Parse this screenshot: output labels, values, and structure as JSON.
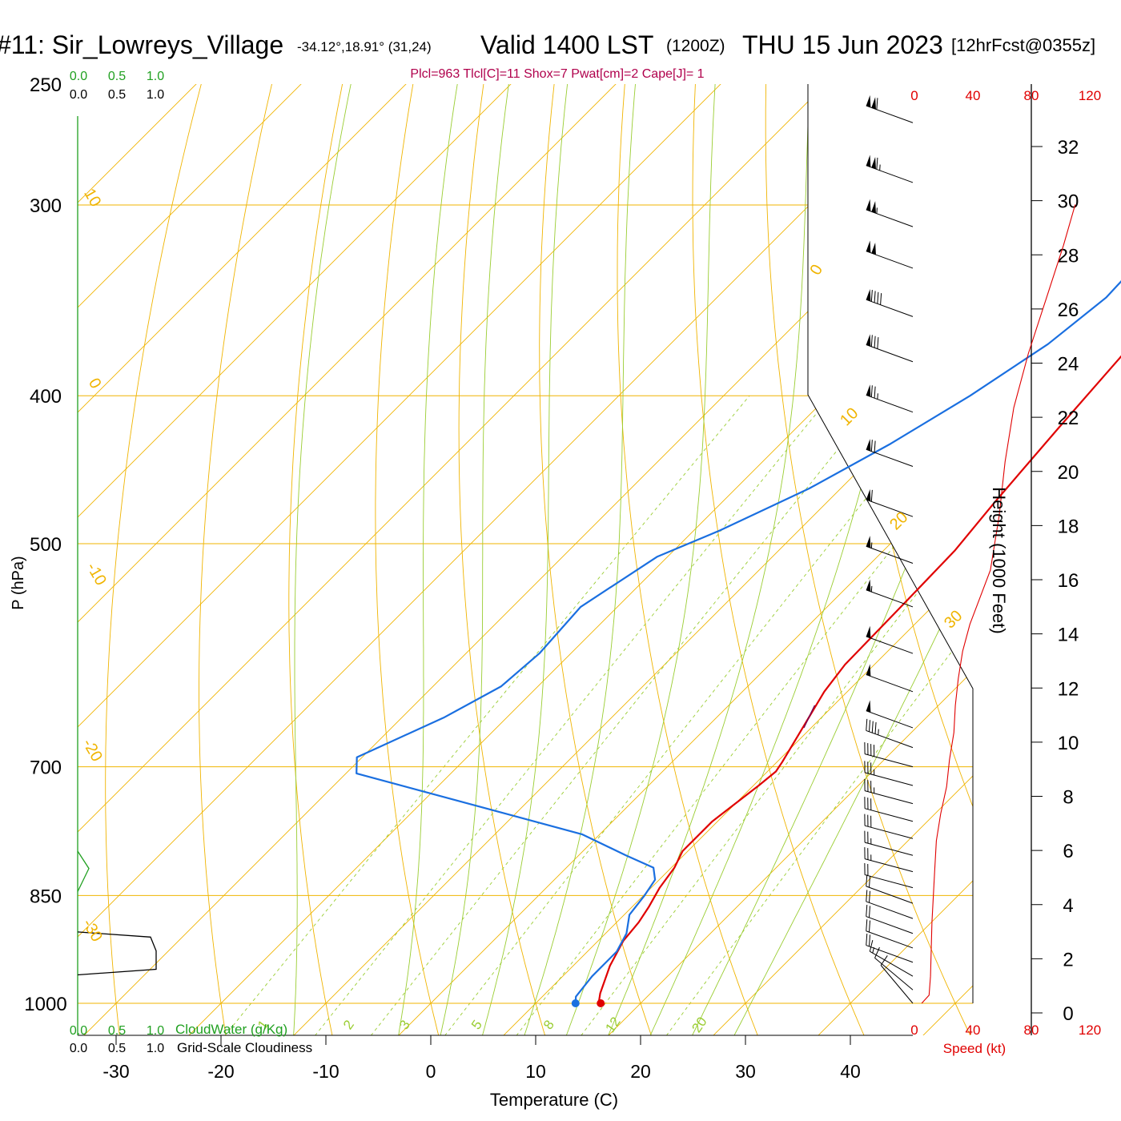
{
  "header": {
    "station": "#11: Sir_Lowreys_Village",
    "coords": "-34.12°,18.91° (31,24)",
    "valid": "Valid 1400 LST",
    "utc": "(1200Z)",
    "date": "THU 15 Jun 2023",
    "forecast": "[12hrFcst@0355z]"
  },
  "indices": "Plcl=963 Tlcl[C]=11 Shox=7 Pwat[cm]=2 Cape[J]= 1",
  "colors": {
    "isobar": "#f0b400",
    "adiabat": "#f0b400",
    "moist": "#9acd32",
    "mixing": "#9acd32",
    "temperature": "#e00000",
    "dewpoint": "#1a6fe0",
    "cloudwater": "#20a020",
    "indices": "#b0004c",
    "speed": "#e00000"
  },
  "chart_data": {
    "type": "line",
    "subtype": "skew-T log-P sounding",
    "xlabel": "Temperature (C)",
    "ylabel": "P (hPa)",
    "x_ticks": [
      -30,
      -20,
      -10,
      0,
      10,
      20,
      30,
      40
    ],
    "p_ticks": [
      250,
      300,
      400,
      500,
      700,
      850,
      1000
    ],
    "isobars": [
      300,
      400,
      500,
      700,
      850,
      1000
    ],
    "isotherm_labels": [
      "10",
      "0",
      "-10",
      "-20",
      "-30",
      "0",
      "10",
      "20",
      "30"
    ],
    "mixing_ratio_labels": [
      "1",
      "2",
      "3",
      "5",
      "8",
      "12",
      "20"
    ],
    "series": [
      {
        "key": "temperature",
        "points": [
          [
            -2.0,
            265
          ],
          [
            1.5,
            300
          ],
          [
            2.5,
            325
          ],
          [
            4,
            370
          ],
          [
            5,
            420
          ],
          [
            6,
            470
          ],
          [
            6.8,
            505
          ],
          [
            7,
            545
          ],
          [
            7.2,
            600
          ],
          [
            7.8,
            625
          ],
          [
            8.8,
            650
          ],
          [
            10.5,
            695
          ],
          [
            10.8,
            705
          ],
          [
            10.5,
            720
          ],
          [
            9.5,
            760
          ],
          [
            9.5,
            795
          ],
          [
            10.3,
            815
          ],
          [
            10.8,
            840
          ],
          [
            11.6,
            865
          ],
          [
            12.1,
            885
          ],
          [
            12.4,
            910
          ],
          [
            13.5,
            945
          ],
          [
            15.2,
            985
          ],
          [
            16.0,
            1000
          ]
        ]
      },
      {
        "key": "dewpoint",
        "points": [
          [
            -6.8,
            265
          ],
          [
            -4.8,
            285
          ],
          [
            -3.3,
            315
          ],
          [
            -2.9,
            345
          ],
          [
            -4,
            370
          ],
          [
            -6.5,
            400
          ],
          [
            -9.5,
            430
          ],
          [
            -13,
            460
          ],
          [
            -17.5,
            490
          ],
          [
            -21,
            510
          ],
          [
            -23.5,
            550
          ],
          [
            -23,
            590
          ],
          [
            -23.5,
            620
          ],
          [
            -26,
            650
          ],
          [
            -30.5,
            690
          ],
          [
            -29,
            707
          ],
          [
            -1.7,
            775
          ],
          [
            4.5,
            800
          ],
          [
            8.3,
            815
          ],
          [
            9.6,
            830
          ],
          [
            10.1,
            850
          ],
          [
            10.5,
            875
          ],
          [
            12,
            900
          ],
          [
            12.8,
            925
          ],
          [
            12.8,
            960
          ],
          [
            13.2,
            990
          ],
          [
            13.8,
            1000
          ]
        ]
      },
      {
        "key": "parcel",
        "points": [
          [
            8.2,
            638
          ],
          [
            8.8,
            650
          ],
          [
            9.3,
            660
          ]
        ]
      }
    ],
    "surface_temperature": 16.2,
    "surface_dewpoint": 13.8,
    "wind_barbs": [
      {
        "p": 265,
        "dir": 290,
        "kt": 110
      },
      {
        "p": 290,
        "dir": 290,
        "kt": 115
      },
      {
        "p": 310,
        "dir": 290,
        "kt": 105
      },
      {
        "p": 330,
        "dir": 290,
        "kt": 100
      },
      {
        "p": 355,
        "dir": 290,
        "kt": 90
      },
      {
        "p": 380,
        "dir": 290,
        "kt": 80
      },
      {
        "p": 410,
        "dir": 290,
        "kt": 75
      },
      {
        "p": 445,
        "dir": 290,
        "kt": 70
      },
      {
        "p": 480,
        "dir": 290,
        "kt": 60
      },
      {
        "p": 515,
        "dir": 290,
        "kt": 55
      },
      {
        "p": 550,
        "dir": 290,
        "kt": 55
      },
      {
        "p": 590,
        "dir": 290,
        "kt": 50
      },
      {
        "p": 625,
        "dir": 290,
        "kt": 50
      },
      {
        "p": 660,
        "dir": 290,
        "kt": 50
      },
      {
        "p": 680,
        "dir": 290,
        "kt": 45
      },
      {
        "p": 700,
        "dir": 285,
        "kt": 40
      },
      {
        "p": 720,
        "dir": 285,
        "kt": 35
      },
      {
        "p": 740,
        "dir": 285,
        "kt": 35
      },
      {
        "p": 760,
        "dir": 285,
        "kt": 30
      },
      {
        "p": 780,
        "dir": 285,
        "kt": 30
      },
      {
        "p": 800,
        "dir": 285,
        "kt": 25
      },
      {
        "p": 820,
        "dir": 285,
        "kt": 25
      },
      {
        "p": 840,
        "dir": 285,
        "kt": 20
      },
      {
        "p": 860,
        "dir": 290,
        "kt": 20
      },
      {
        "p": 880,
        "dir": 290,
        "kt": 20
      },
      {
        "p": 900,
        "dir": 290,
        "kt": 20
      },
      {
        "p": 920,
        "dir": 290,
        "kt": 20
      },
      {
        "p": 940,
        "dir": 290,
        "kt": 20
      },
      {
        "p": 960,
        "dir": 300,
        "kt": 15
      },
      {
        "p": 980,
        "dir": 310,
        "kt": 10
      },
      {
        "p": 1000,
        "dir": 320,
        "kt": 10
      }
    ],
    "height_axis": {
      "label": "Height (1000 Feet)",
      "ticks": [
        0,
        2,
        4,
        6,
        8,
        10,
        12,
        14,
        16,
        18,
        20,
        22,
        24,
        26,
        28,
        30,
        32
      ]
    },
    "speed_axis": {
      "label": "Speed (kt)",
      "ticks": [
        0,
        40,
        80,
        120
      ]
    },
    "wind_speed_profile": [
      [
        5,
        0
      ],
      [
        10,
        0.3
      ],
      [
        11,
        1
      ],
      [
        12,
        3
      ],
      [
        14,
        5
      ],
      [
        15,
        6
      ],
      [
        18,
        7
      ],
      [
        22,
        8
      ],
      [
        24,
        9
      ],
      [
        27,
        10
      ],
      [
        28,
        11
      ],
      [
        30,
        12
      ],
      [
        33,
        13
      ],
      [
        38,
        14
      ],
      [
        45,
        15
      ],
      [
        52,
        16
      ],
      [
        58,
        18
      ],
      [
        62,
        20
      ],
      [
        68,
        22
      ],
      [
        78,
        24
      ],
      [
        90,
        26
      ],
      [
        102,
        28
      ],
      [
        110,
        29.5
      ]
    ],
    "cloud_scale": {
      "ticks": [
        "0.0",
        "0.5",
        "1.0"
      ],
      "cloudwater_label": "CloudWater (g/Kg)",
      "cloudiness_label": "Grid-Scale Cloudiness",
      "cloudwater": [
        [
          0,
          795
        ],
        [
          0.4,
          816
        ],
        [
          0,
          845
        ]
      ],
      "cloudiness": [
        [
          0,
          898
        ],
        [
          2.6,
          905
        ],
        [
          2.8,
          924
        ],
        [
          2.8,
          950
        ],
        [
          0,
          958
        ]
      ]
    }
  }
}
